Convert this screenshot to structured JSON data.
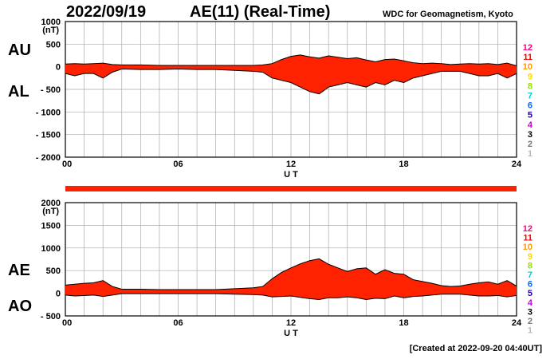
{
  "header": {
    "date": "2022/09/19",
    "title": "AE(11) (Real-Time)",
    "credit": "WDC for Geomagnetism, Kyoto",
    "created": "[Created at 2022-09-20 04:40UT]"
  },
  "colors": {
    "fill": "#ff2200",
    "line": "#000000",
    "grid": "#aaaaaa"
  },
  "legend": [
    {
      "label": "12",
      "color": "#ff0080"
    },
    {
      "label": "11",
      "color": "#ff0000"
    },
    {
      "label": "10",
      "color": "#ff9900"
    },
    {
      "label": "9",
      "color": "#ffd700"
    },
    {
      "label": "8",
      "color": "#99dd00"
    },
    {
      "label": "7",
      "color": "#00cccc"
    },
    {
      "label": "6",
      "color": "#0066ff"
    },
    {
      "label": "5",
      "color": "#2200aa"
    },
    {
      "label": "4",
      "color": "#cc00cc"
    },
    {
      "label": "3",
      "color": "#000000"
    },
    {
      "label": "2",
      "color": "#777777"
    },
    {
      "label": "1",
      "color": "#bbbbbb"
    }
  ],
  "chart_data": [
    {
      "type": "area",
      "panel": "AU/AL",
      "series_labels": {
        "upper": "AU",
        "lower": "AL"
      },
      "xlabel": "U T",
      "ylabel_unit": "(nT)",
      "xlim": [
        0,
        24
      ],
      "ylim": [
        -2000,
        1000
      ],
      "xticks": [
        0,
        6,
        12,
        18,
        24
      ],
      "xtick_labels": [
        "00",
        "06",
        "12",
        "18",
        "24"
      ],
      "yticks": [
        1000,
        500,
        0,
        -500,
        -1000,
        -1500,
        -2000
      ],
      "ytick_labels": [
        "1000",
        "500",
        "0",
        "- 500",
        "- 1000",
        "- 1500",
        "- 2000"
      ],
      "x": [
        0,
        0.5,
        1,
        1.5,
        2,
        2.5,
        3,
        4,
        5,
        6,
        7,
        8,
        9,
        10,
        10.5,
        11,
        11.5,
        12,
        12.5,
        13,
        13.5,
        14,
        14.5,
        15,
        15.5,
        16,
        16.5,
        17,
        17.5,
        18,
        18.5,
        19,
        19.5,
        20,
        20.5,
        21,
        21.5,
        22,
        22.5,
        23,
        23.5,
        24
      ],
      "upper": [
        60,
        70,
        60,
        70,
        80,
        50,
        40,
        40,
        30,
        30,
        30,
        30,
        30,
        30,
        40,
        70,
        160,
        230,
        260,
        220,
        190,
        240,
        210,
        180,
        200,
        150,
        110,
        160,
        170,
        130,
        90,
        70,
        80,
        70,
        50,
        60,
        70,
        60,
        70,
        50,
        80,
        20
      ],
      "lower": [
        -150,
        -200,
        -150,
        -150,
        -250,
        -120,
        -50,
        -60,
        -60,
        -50,
        -60,
        -60,
        -80,
        -100,
        -120,
        -250,
        -300,
        -350,
        -450,
        -550,
        -600,
        -450,
        -400,
        -350,
        -400,
        -450,
        -350,
        -400,
        -300,
        -350,
        -250,
        -200,
        -150,
        -100,
        -100,
        -100,
        -150,
        -200,
        -200,
        -150,
        -250,
        -150
      ]
    },
    {
      "type": "area",
      "panel": "AE/AO",
      "series_labels": {
        "upper": "AE",
        "lower": "AO"
      },
      "xlabel": "U T",
      "ylabel_unit": "(nT)",
      "xlim": [
        0,
        24
      ],
      "ylim": [
        -500,
        2000
      ],
      "xticks": [
        0,
        6,
        12,
        18,
        24
      ],
      "xtick_labels": [
        "00",
        "06",
        "12",
        "18",
        "24"
      ],
      "yticks": [
        2000,
        1500,
        1000,
        500,
        0,
        -500
      ],
      "ytick_labels": [
        "2000",
        "1500",
        "1000",
        "500",
        "0",
        "- 500"
      ],
      "x": [
        0,
        0.5,
        1,
        1.5,
        2,
        2.5,
        3,
        4,
        5,
        6,
        7,
        8,
        9,
        10,
        10.5,
        11,
        11.5,
        12,
        12.5,
        13,
        13.5,
        14,
        14.5,
        15,
        15.5,
        16,
        16.5,
        17,
        17.5,
        18,
        18.5,
        19,
        19.5,
        20,
        20.5,
        21,
        21.5,
        22,
        22.5,
        23,
        23.5,
        24
      ],
      "upper": [
        180,
        200,
        220,
        230,
        280,
        150,
        90,
        90,
        80,
        80,
        80,
        80,
        100,
        120,
        150,
        320,
        460,
        560,
        650,
        720,
        760,
        640,
        560,
        480,
        540,
        560,
        420,
        520,
        440,
        420,
        300,
        260,
        220,
        170,
        150,
        160,
        200,
        230,
        250,
        200,
        280,
        160
      ],
      "lower": [
        -40,
        -60,
        -50,
        -40,
        -70,
        -40,
        -10,
        -10,
        -10,
        -10,
        -10,
        -10,
        -20,
        -30,
        -40,
        -80,
        -70,
        -60,
        -90,
        -120,
        -140,
        -100,
        -100,
        -80,
        -100,
        -140,
        -110,
        -120,
        -60,
        -100,
        -70,
        -60,
        -40,
        -20,
        -20,
        -20,
        -40,
        -60,
        -60,
        -50,
        -80,
        -50
      ]
    }
  ]
}
